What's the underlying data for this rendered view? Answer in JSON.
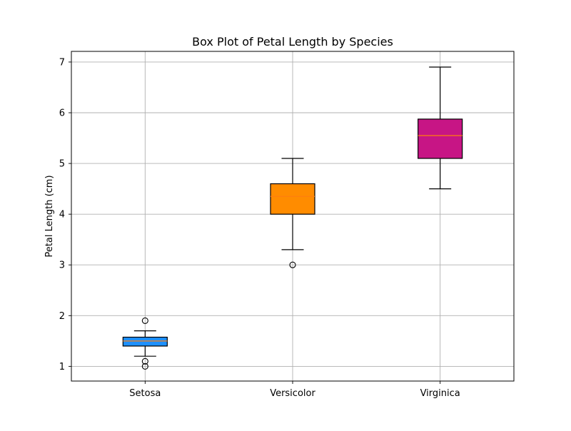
{
  "chart_data": {
    "type": "box",
    "title": "Box Plot of Petal Length by Species",
    "xlabel": "",
    "ylabel": "Petal Length (cm)",
    "ylim": [
      0.71,
      7.21
    ],
    "yticks": [
      1,
      2,
      3,
      4,
      5,
      6,
      7
    ],
    "grid": true,
    "categories": [
      "Setosa",
      "Versicolor",
      "Virginica"
    ],
    "boxes": [
      {
        "category": "Setosa",
        "whisker_low": 1.2,
        "q1": 1.4,
        "median": 1.5,
        "q3": 1.575,
        "whisker_high": 1.7,
        "outliers": [
          1.0,
          1.1,
          1.9
        ],
        "color": "#1e90ff"
      },
      {
        "category": "Versicolor",
        "whisker_low": 3.3,
        "q1": 4.0,
        "median": 4.35,
        "q3": 4.6,
        "whisker_high": 5.1,
        "outliers": [
          3.0
        ],
        "color": "#ff8c00"
      },
      {
        "category": "Virginica",
        "whisker_low": 4.5,
        "q1": 5.1,
        "median": 5.55,
        "q3": 5.875,
        "whisker_high": 6.9,
        "outliers": [],
        "color": "#c71585"
      }
    ],
    "median_color": "#ff7f0e",
    "grid_color": "#b0b0b0"
  }
}
